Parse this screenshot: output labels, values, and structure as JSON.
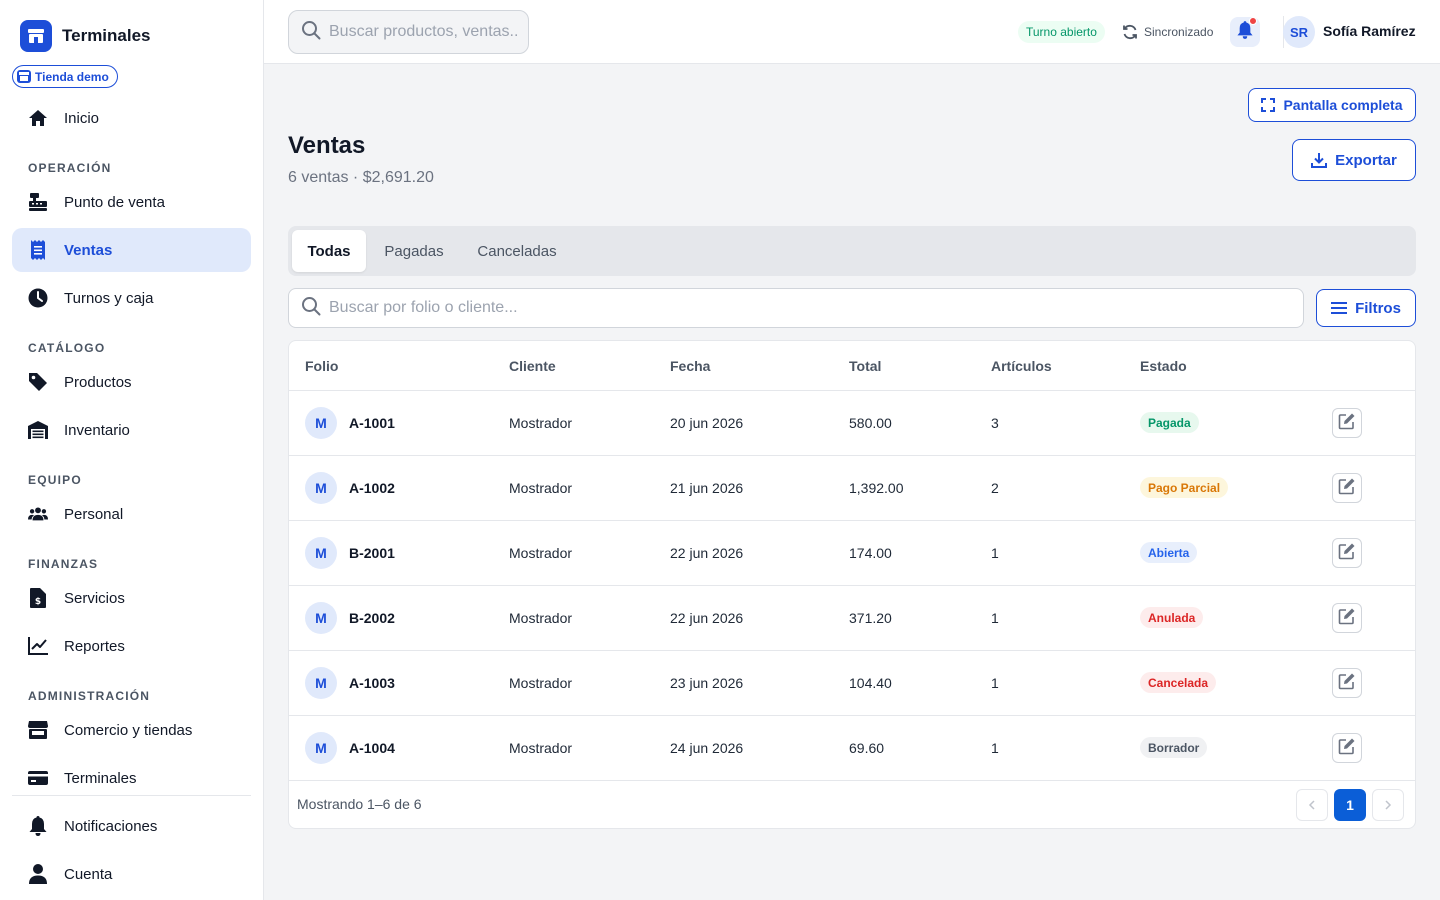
{
  "app": {
    "title": "Terminales",
    "store_badge": "Tienda demo"
  },
  "sidebar": {
    "home": "Inicio",
    "sections": {
      "operacion": "OPERACIÓN",
      "catalogo": "CATÁLOGO",
      "equipo": "EQUIPO",
      "finanzas": "FINANZAS",
      "administracion": "ADMINISTRACIÓN"
    },
    "items": {
      "punto_de_venta": "Punto de venta",
      "ventas": "Ventas",
      "turnos": "Turnos y caja",
      "productos": "Productos",
      "inventario": "Inventario",
      "personal": "Personal",
      "servicios": "Servicios",
      "reportes": "Reportes",
      "comercio": "Comercio y tiendas",
      "terminales": "Terminales",
      "notificaciones": "Notificaciones",
      "cuenta": "Cuenta"
    }
  },
  "topbar": {
    "search_placeholder": "Buscar productos, ventas...",
    "shift_status": "Turno abierto",
    "sync_status": "Sincronizado",
    "user_initials": "SR",
    "user_name": "Sofía Ramírez"
  },
  "page": {
    "fullscreen_label": "Pantalla completa",
    "title": "Ventas",
    "subtitle": "6 ventas · $2,691.20",
    "export_label": "Exportar"
  },
  "tabs": [
    "Todas",
    "Pagadas",
    "Canceladas"
  ],
  "table_search_placeholder": "Buscar por folio o cliente...",
  "filters_label": "Filtros",
  "table": {
    "columns": [
      "Folio",
      "Cliente",
      "Fecha",
      "Total",
      "Artículos",
      "Estado"
    ],
    "rows": [
      {
        "initial": "M",
        "folio": "A-1001",
        "cliente": "Mostrador",
        "fecha": "20 jun 2026",
        "total": "580.00",
        "articulos": "3",
        "estado": "Pagada"
      },
      {
        "initial": "M",
        "folio": "A-1002",
        "cliente": "Mostrador",
        "fecha": "21 jun 2026",
        "total": "1,392.00",
        "articulos": "2",
        "estado": "Pago Parcial"
      },
      {
        "initial": "M",
        "folio": "B-2001",
        "cliente": "Mostrador",
        "fecha": "22 jun 2026",
        "total": "174.00",
        "articulos": "1",
        "estado": "Abierta"
      },
      {
        "initial": "M",
        "folio": "B-2002",
        "cliente": "Mostrador",
        "fecha": "22 jun 2026",
        "total": "371.20",
        "articulos": "1",
        "estado": "Anulada"
      },
      {
        "initial": "M",
        "folio": "A-1003",
        "cliente": "Mostrador",
        "fecha": "23 jun 2026",
        "total": "104.40",
        "articulos": "1",
        "estado": "Cancelada"
      },
      {
        "initial": "M",
        "folio": "A-1004",
        "cliente": "Mostrador",
        "fecha": "24 jun 2026",
        "total": "69.60",
        "articulos": "1",
        "estado": "Borrador"
      }
    ]
  },
  "status_colors": {
    "Pagada": {
      "bg": "#e7f8ee",
      "fg": "#059669"
    },
    "Pago Parcial": {
      "bg": "#fdf6dc",
      "fg": "#d97706"
    },
    "Abierta": {
      "bg": "#e8effc",
      "fg": "#2563eb"
    },
    "Anulada": {
      "bg": "#fdecec",
      "fg": "#dc2626"
    },
    "Cancelada": {
      "bg": "#fdecec",
      "fg": "#dc2626"
    },
    "Borrador": {
      "bg": "#f0f1f3",
      "fg": "#4b5563"
    }
  },
  "pagination": {
    "showing": "Mostrando 1–6 de 6",
    "current_page": "1"
  },
  "colors": {
    "accent": "#1d4ed8",
    "active_bg": "#e0e9fb"
  }
}
